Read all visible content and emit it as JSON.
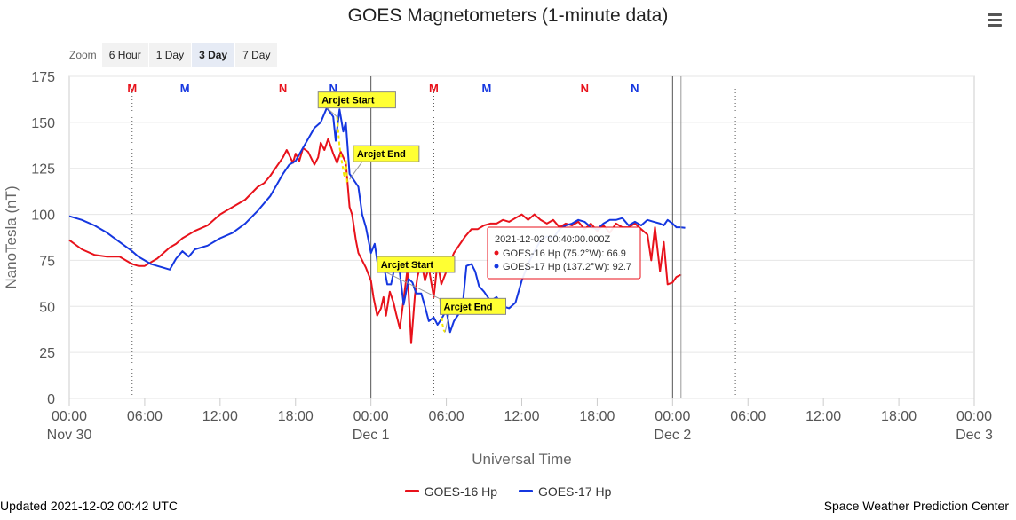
{
  "chart_data": {
    "type": "line",
    "title": "GOES Magnetometers (1-minute data)",
    "xlabel": "Universal Time",
    "ylabel": "NanoTesla (nT)",
    "xlim_hours": [
      0,
      72
    ],
    "ylim": [
      0,
      175
    ],
    "y_ticks": [
      0,
      25,
      50,
      75,
      100,
      125,
      150,
      175
    ],
    "x_ticks": [
      {
        "h": 0,
        "label": "00:00",
        "sub": "Nov 30"
      },
      {
        "h": 6,
        "label": "06:00",
        "sub": ""
      },
      {
        "h": 12,
        "label": "12:00",
        "sub": ""
      },
      {
        "h": 18,
        "label": "18:00",
        "sub": ""
      },
      {
        "h": 24,
        "label": "00:00",
        "sub": "Dec 1"
      },
      {
        "h": 30,
        "label": "06:00",
        "sub": ""
      },
      {
        "h": 36,
        "label": "12:00",
        "sub": ""
      },
      {
        "h": 42,
        "label": "18:00",
        "sub": ""
      },
      {
        "h": 48,
        "label": "00:00",
        "sub": "Dec 2"
      },
      {
        "h": 54,
        "label": "06:00",
        "sub": ""
      },
      {
        "h": 60,
        "label": "12:00",
        "sub": ""
      },
      {
        "h": 66,
        "label": "18:00",
        "sub": ""
      },
      {
        "h": 72,
        "label": "00:00",
        "sub": "Dec 3"
      }
    ],
    "grid": true,
    "series": [
      {
        "name": "GOES-16 Hp",
        "color": "#e8121b",
        "x": [
          0,
          1,
          2,
          3,
          4,
          5,
          5.5,
          6,
          6.5,
          7,
          7.5,
          8,
          8.5,
          9,
          10,
          11,
          11.5,
          12,
          12.5,
          13,
          14,
          15,
          15.5,
          16,
          16.5,
          17,
          17.3,
          17.8,
          18,
          18.3,
          18.6,
          19,
          19.5,
          19.8,
          20,
          20.3,
          20.6,
          21,
          21.3,
          21.6,
          22,
          22.3,
          22.5,
          22.8,
          23,
          23.3,
          23.6,
          24,
          24.2,
          24.5,
          24.8,
          25,
          25.2,
          25.5,
          25.8,
          26,
          26.3,
          26.6,
          26.9,
          27.2,
          27.5,
          27.7,
          28,
          28.3,
          28.6,
          29,
          29.3,
          29.6,
          30,
          30.3,
          30.6,
          31,
          31.5,
          32,
          32.5,
          33,
          33.5,
          34,
          34.5,
          35,
          35.5,
          36,
          36.5,
          37,
          37.5,
          38,
          38.5,
          39,
          39.5,
          40,
          40.5,
          41,
          41.5,
          42,
          42.5,
          43,
          43.5,
          44,
          44.5,
          45,
          45.5,
          46,
          46.3,
          46.6,
          47,
          47.3,
          47.6,
          48,
          48.3,
          48.6,
          48.7
        ],
        "values": [
          86,
          81,
          78,
          77,
          77,
          73,
          72,
          72,
          74,
          76,
          79,
          82,
          84,
          87,
          91,
          94,
          97,
          100,
          102,
          104,
          108,
          115,
          117,
          121,
          126,
          131,
          135,
          128,
          133,
          129,
          136,
          134,
          127,
          131,
          139,
          135,
          141,
          133,
          128,
          134,
          128,
          104,
          100,
          86,
          79,
          75,
          71,
          64,
          55,
          45,
          49,
          55,
          45,
          58,
          52,
          46,
          38,
          54,
          70,
          30,
          56,
          66,
          74,
          64,
          71,
          55,
          74,
          62,
          69,
          74,
          79,
          83,
          88,
          92,
          92,
          94,
          95,
          95,
          97,
          96,
          98,
          100,
          97,
          100,
          97,
          95,
          97,
          93,
          95,
          94,
          96,
          92,
          95,
          91,
          94,
          90,
          95,
          93,
          93,
          95,
          92,
          89,
          75,
          93,
          69,
          85,
          62,
          63,
          66,
          67,
          66.9
        ],
        "xy_note": "x in hours since 2021-11-30 00:00 UTC"
      },
      {
        "name": "GOES-17 Hp",
        "color": "#1537e0",
        "x": [
          0,
          1,
          2,
          3,
          4,
          5,
          5.5,
          6,
          6.5,
          7,
          7.5,
          8,
          8.5,
          9,
          9.5,
          10,
          11,
          12,
          13,
          14,
          15,
          16,
          16.5,
          17,
          17.5,
          18,
          18.5,
          19,
          19.5,
          20,
          20.5,
          21,
          21.2,
          21.5,
          21.8,
          22,
          22.3,
          22.6,
          23,
          23.3,
          23.6,
          24,
          24.3,
          24.6,
          25,
          25.3,
          25.6,
          26,
          26.3,
          26.6,
          27,
          27.3,
          27.6,
          28,
          28.3,
          28.6,
          29,
          29.3,
          29.6,
          30,
          30.3,
          30.6,
          31,
          31.3,
          31.6,
          32,
          32.3,
          32.6,
          33,
          33.5,
          34,
          34.5,
          35,
          35.5,
          36,
          36.5,
          37,
          37.5,
          38,
          38.5,
          39,
          39.5,
          40,
          40.5,
          41,
          41.5,
          42,
          42.5,
          43,
          43.5,
          44,
          44.5,
          45,
          45.5,
          46,
          46.5,
          47,
          47.3,
          47.6,
          48,
          48.3,
          48.6,
          49
        ],
        "values": [
          99,
          97,
          94,
          90,
          85,
          80,
          77,
          75,
          73,
          72,
          71,
          70,
          76,
          80,
          77,
          81,
          83,
          87,
          90,
          95,
          102,
          110,
          116,
          122,
          127,
          129,
          135,
          141,
          147,
          150,
          158,
          153,
          140,
          157,
          145,
          150,
          122,
          119,
          115,
          100,
          93,
          79,
          84,
          70,
          73,
          62,
          62,
          75,
          68,
          51,
          65,
          63,
          57,
          57,
          50,
          42,
          44,
          40,
          43,
          48,
          36,
          42,
          46,
          51,
          72,
          73,
          69,
          61,
          58,
          53,
          55,
          50,
          49,
          52,
          64,
          73,
          80,
          86,
          88,
          87,
          92,
          94,
          95,
          97,
          96,
          93,
          92,
          95,
          97,
          97,
          98,
          94,
          96,
          94,
          97,
          96,
          95,
          94,
          97,
          95,
          93,
          93,
          92.7
        ]
      }
    ],
    "satellite_markers": [
      {
        "h": 5,
        "label": "M",
        "color": "#e8121b",
        "dotted_line": true
      },
      {
        "h": 9.2,
        "label": "M",
        "color": "#1537e0",
        "dotted_line": false
      },
      {
        "h": 17,
        "label": "N",
        "color": "#e8121b",
        "dotted_line": false
      },
      {
        "h": 21,
        "label": "N",
        "color": "#1537e0",
        "dotted_line": false
      },
      {
        "h": 29,
        "label": "M",
        "color": "#e8121b",
        "dotted_line": true
      },
      {
        "h": 33.2,
        "label": "M",
        "color": "#1537e0",
        "dotted_line": false
      },
      {
        "h": 41,
        "label": "N",
        "color": "#e8121b",
        "dotted_line": false
      },
      {
        "h": 45,
        "label": "N",
        "color": "#1537e0",
        "dotted_line": false
      },
      {
        "h": 53,
        "label": "",
        "color": "#333333",
        "dotted_line": true
      }
    ],
    "day_lines_hours": [
      24,
      48
    ],
    "arcjet_events": [
      {
        "label": "Arcjet Start",
        "h": 21.3,
        "value": 153
      },
      {
        "label": "Arcjet End",
        "h": 22.3,
        "value": 119
      },
      {
        "label": "Arcjet Start",
        "h": 29.5,
        "value": 54
      },
      {
        "label": "Arcjet End",
        "h": 29.9,
        "value": 36
      }
    ],
    "arcjet_dashed": {
      "x": [
        21.3,
        21.5,
        21.7,
        21.9,
        22.0,
        22.1,
        22.3
      ],
      "values": [
        153,
        137,
        128,
        120,
        130,
        118,
        119
      ]
    },
    "arcjet_dashed_2": {
      "x": [
        29.5,
        29.6,
        29.7,
        29.8,
        29.9
      ],
      "values": [
        54,
        47,
        40,
        37,
        36
      ]
    },
    "tooltip": {
      "title": "2021-12-02 00:40:00.000Z",
      "rows": [
        {
          "series": "GOES-16 Hp (75.2°W)",
          "value": "66.9",
          "color": "#e8121b"
        },
        {
          "series": "GOES-17 Hp (137.2°W)",
          "value": "92.7",
          "color": "#1537e0"
        }
      ],
      "crosshair_h": 48.67
    }
  },
  "zoom": {
    "label": "Zoom",
    "buttons": [
      {
        "label": "6 Hour",
        "active": false
      },
      {
        "label": "1 Day",
        "active": false
      },
      {
        "label": "3 Day",
        "active": true
      },
      {
        "label": "7 Day",
        "active": false
      }
    ]
  },
  "footer": {
    "updated": "Updated 2021-12-02 00:42 UTC",
    "credit": "Space Weather Prediction Center"
  },
  "legend": [
    {
      "label": "GOES-16 Hp",
      "color": "#e8121b"
    },
    {
      "label": "GOES-17 Hp",
      "color": "#1537e0"
    }
  ]
}
